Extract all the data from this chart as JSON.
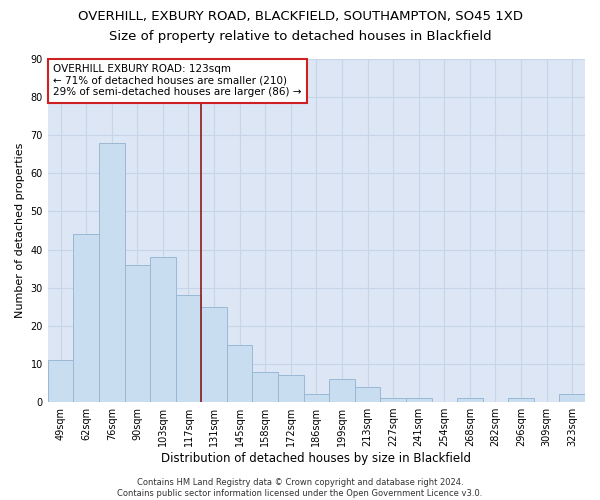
{
  "title": "OVERHILL, EXBURY ROAD, BLACKFIELD, SOUTHAMPTON, SO45 1XD",
  "subtitle": "Size of property relative to detached houses in Blackfield",
  "xlabel": "Distribution of detached houses by size in Blackfield",
  "ylabel": "Number of detached properties",
  "categories": [
    "49sqm",
    "62sqm",
    "76sqm",
    "90sqm",
    "103sqm",
    "117sqm",
    "131sqm",
    "145sqm",
    "158sqm",
    "172sqm",
    "186sqm",
    "199sqm",
    "213sqm",
    "227sqm",
    "241sqm",
    "254sqm",
    "268sqm",
    "282sqm",
    "296sqm",
    "309sqm",
    "323sqm"
  ],
  "values": [
    11,
    44,
    68,
    36,
    38,
    28,
    25,
    15,
    8,
    7,
    2,
    6,
    4,
    1,
    1,
    0,
    1,
    0,
    1,
    0,
    2
  ],
  "bar_color": "#c9ddf0",
  "bar_edge_color": "#9ab8d4",
  "grid_color": "#c8d4e8",
  "background_color": "#dce6f5",
  "vline_x": 5.5,
  "vline_color": "#8b1a1a",
  "annotation_text": "OVERHILL EXBURY ROAD: 123sqm\n← 71% of detached houses are smaller (210)\n29% of semi-detached houses are larger (86) →",
  "annotation_box_color": "#ffffff",
  "annotation_box_edge": "#cc2222",
  "ylim": [
    0,
    90
  ],
  "yticks": [
    0,
    10,
    20,
    30,
    40,
    50,
    60,
    70,
    80,
    90
  ],
  "footer": "Contains HM Land Registry data © Crown copyright and database right 2024.\nContains public sector information licensed under the Open Government Licence v3.0.",
  "title_fontsize": 9.5,
  "subtitle_fontsize": 9.5,
  "xlabel_fontsize": 8.5,
  "ylabel_fontsize": 8,
  "tick_fontsize": 7,
  "footer_fontsize": 6,
  "annotation_fontsize": 7.5
}
